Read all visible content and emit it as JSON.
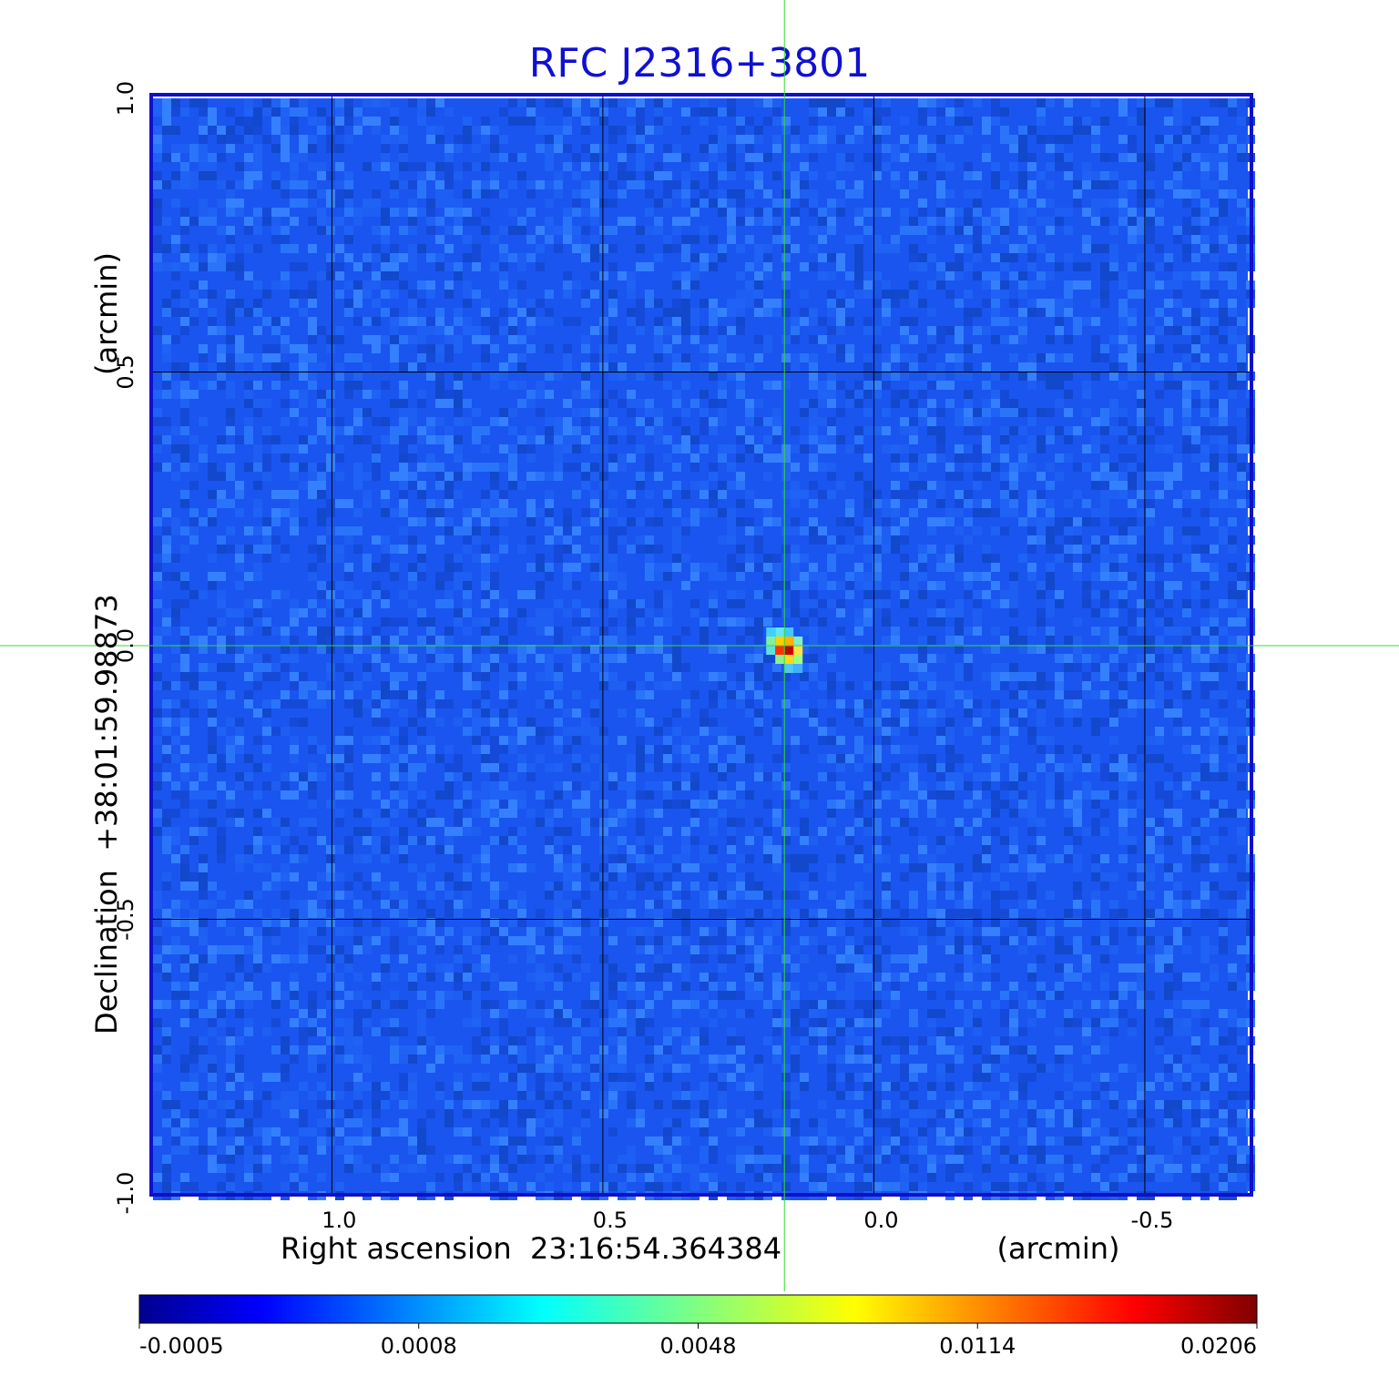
{
  "chart_data": {
    "type": "heatmap",
    "title": "RFC J2316+3801",
    "title_color": "#1010d0",
    "xlabel": "Right ascension  23:16:54.364384",
    "xlabel_unit": "(arcmin)",
    "ylabel": "Declination  +38:01:59.98873",
    "ylabel_unit": "(arcmin)",
    "xlim": [
      1.33,
      -0.69
    ],
    "ylim": [
      -1.0,
      1.0
    ],
    "x_ticks": [
      {
        "value": 1.0,
        "label": "1.0"
      },
      {
        "value": 0.5,
        "label": "0.5"
      },
      {
        "value": 0.0,
        "label": "0.0"
      },
      {
        "value": -0.5,
        "label": "-0.5"
      }
    ],
    "y_ticks": [
      {
        "value": 1.0,
        "label": "1.0"
      },
      {
        "value": 0.5,
        "label": "0.5"
      },
      {
        "value": 0.0,
        "label": "0.0"
      },
      {
        "value": -0.5,
        "label": "-0.5"
      },
      {
        "value": -1.0,
        "label": "-1.0"
      }
    ],
    "grid": true,
    "crosshair": {
      "x": 0.165,
      "y": 0.0,
      "color": "#33dd33"
    },
    "source": {
      "x": 0.165,
      "y": 0.0,
      "peak": 0.0206
    },
    "colorbar": {
      "ticks": [
        "-0.0005",
        "0.0008",
        "0.0048",
        "0.0114",
        "0.0206"
      ],
      "colormap": "jet"
    },
    "frame_color": "#1010c8"
  }
}
